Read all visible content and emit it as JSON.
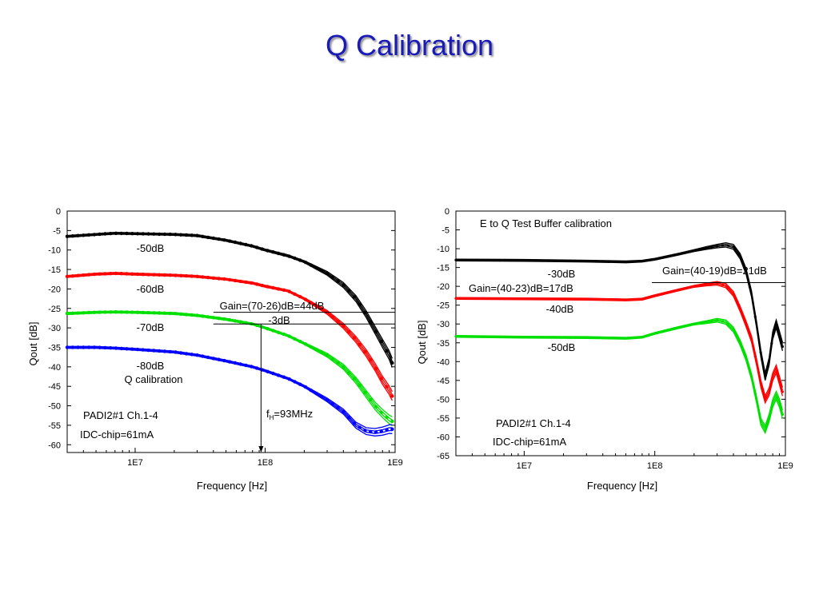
{
  "slide": {
    "title": "Q Calibration"
  },
  "chart_data": [
    {
      "type": "line",
      "xscale": "log",
      "xlim": [
        3000000,
        1000000000
      ],
      "ylim": [
        -62,
        0
      ],
      "xlabel": "Frequency [Hz]",
      "ylabel": "Qout [dB]",
      "xticks": [
        {
          "value": 10000000,
          "label": "1E7"
        },
        {
          "value": 100000000,
          "label": "1E8"
        },
        {
          "value": 1000000000,
          "label": "1E9"
        }
      ],
      "yticks": [
        0,
        -5,
        -10,
        -15,
        -20,
        -25,
        -30,
        -35,
        -40,
        -45,
        -50,
        -55,
        -60
      ],
      "grid": false,
      "series": [
        {
          "name": "-50dB",
          "color": "#000000",
          "x": [
            3000000,
            5000000,
            7000000,
            10000000,
            20000000,
            30000000,
            50000000,
            80000000,
            100000000,
            150000000,
            200000000,
            300000000,
            400000000,
            500000000,
            600000000,
            700000000,
            800000000,
            900000000,
            950000000
          ],
          "y": [
            -6.5,
            -6.0,
            -5.7,
            -5.8,
            -6.0,
            -6.3,
            -7.5,
            -9.0,
            -10.0,
            -11.5,
            -13.0,
            -16.0,
            -19.0,
            -22.5,
            -26.5,
            -30.5,
            -34.0,
            -37.0,
            -39.0
          ]
        },
        {
          "name": "-60dB",
          "color": "#ff0000",
          "x": [
            3000000,
            5000000,
            7000000,
            10000000,
            20000000,
            30000000,
            50000000,
            80000000,
            100000000,
            150000000,
            200000000,
            300000000,
            400000000,
            500000000,
            600000000,
            700000000,
            800000000,
            900000000,
            950000000
          ],
          "y": [
            -16.8,
            -16.2,
            -16.0,
            -16.2,
            -16.5,
            -16.8,
            -17.5,
            -18.5,
            -19.3,
            -20.5,
            -22.5,
            -26.0,
            -29.5,
            -33.0,
            -36.5,
            -40.0,
            -43.5,
            -46.0,
            -47.5
          ]
        },
        {
          "name": "-70dB",
          "color": "#00e000",
          "x": [
            3000000,
            5000000,
            7000000,
            10000000,
            20000000,
            30000000,
            50000000,
            80000000,
            100000000,
            150000000,
            200000000,
            300000000,
            400000000,
            500000000,
            600000000,
            700000000,
            800000000,
            900000000,
            950000000
          ],
          "y": [
            -26.3,
            -26.0,
            -25.9,
            -26.0,
            -26.3,
            -26.8,
            -27.8,
            -29.0,
            -30.0,
            -32.0,
            -34.0,
            -37.0,
            -40.0,
            -43.5,
            -47.0,
            -50.0,
            -52.0,
            -53.5,
            -54.0
          ]
        },
        {
          "name": "-80dB",
          "color": "#0000ff",
          "x": [
            3000000,
            5000000,
            7000000,
            10000000,
            20000000,
            30000000,
            50000000,
            80000000,
            100000000,
            150000000,
            200000000,
            300000000,
            400000000,
            500000000,
            600000000,
            700000000,
            800000000,
            900000000,
            950000000
          ],
          "y": [
            -35.0,
            -35.0,
            -35.2,
            -35.5,
            -36.2,
            -37.0,
            -38.5,
            -40.0,
            -41.0,
            -43.0,
            -45.0,
            -48.5,
            -51.5,
            -55.0,
            -56.5,
            -56.8,
            -56.5,
            -56.0,
            -56.0
          ]
        }
      ],
      "reference_lines": [
        {
          "y": -26,
          "x1": 40000000,
          "x2": 1000000000
        },
        {
          "y": -29,
          "x1": 40000000,
          "x2": 1000000000
        }
      ],
      "marker_line": {
        "x": 93000000,
        "y1": -29,
        "y2": -62
      },
      "annotations": {
        "label_50": "-50dB",
        "label_60": "-60dB",
        "label_70": "-70dB",
        "label_80": "-80dB",
        "q_calibration": "Q calibration",
        "gain": "Gain=(70-26)dB=44dB",
        "minus3db": "-3dB",
        "fh_main": "f",
        "fh_sub": "H",
        "fh_value": "=93MHz",
        "chip": "PADI2#1 Ch.1-4",
        "current": "IDC-chip=61mA"
      }
    },
    {
      "type": "line",
      "xscale": "log",
      "xlim": [
        3000000,
        1000000000
      ],
      "ylim": [
        -65,
        0
      ],
      "xlabel": "Frequency [Hz]",
      "ylabel": "Qout [dB]",
      "xticks": [
        {
          "value": 10000000,
          "label": "1E7"
        },
        {
          "value": 100000000,
          "label": "1E8"
        },
        {
          "value": 1000000000,
          "label": "1E9"
        }
      ],
      "yticks": [
        0,
        -5,
        -10,
        -15,
        -20,
        -25,
        -30,
        -35,
        -40,
        -45,
        -50,
        -55,
        -60,
        -65
      ],
      "grid": false,
      "series": [
        {
          "name": "-30dB",
          "color": "#000000",
          "x": [
            3000000,
            10000000,
            30000000,
            60000000,
            80000000,
            100000000,
            150000000,
            200000000,
            250000000,
            300000000,
            350000000,
            400000000,
            450000000,
            500000000,
            550000000,
            600000000,
            650000000,
            700000000,
            750000000,
            800000000,
            850000000,
            900000000,
            950000000
          ],
          "y": [
            -13.0,
            -13.1,
            -13.3,
            -13.5,
            -13.3,
            -12.8,
            -11.5,
            -10.5,
            -9.8,
            -9.3,
            -9.0,
            -9.5,
            -12.0,
            -16.0,
            -22.0,
            -30.0,
            -38.0,
            -44.0,
            -40.0,
            -33.0,
            -30.0,
            -33.0,
            -36.0
          ]
        },
        {
          "name": "-40dB",
          "color": "#ff0000",
          "x": [
            3000000,
            10000000,
            30000000,
            60000000,
            80000000,
            100000000,
            150000000,
            200000000,
            250000000,
            300000000,
            350000000,
            400000000,
            450000000,
            500000000,
            550000000,
            600000000,
            650000000,
            700000000,
            750000000,
            800000000,
            850000000,
            900000000,
            950000000
          ],
          "y": [
            -23.2,
            -23.3,
            -23.4,
            -23.6,
            -23.4,
            -22.5,
            -21.0,
            -20.0,
            -19.5,
            -19.2,
            -19.8,
            -22.0,
            -26.0,
            -30.0,
            -34.0,
            -40.0,
            -46.0,
            -50.0,
            -48.0,
            -44.0,
            -42.0,
            -45.0,
            -48.0
          ]
        },
        {
          "name": "-50dB",
          "color": "#00e000",
          "x": [
            3000000,
            10000000,
            30000000,
            60000000,
            80000000,
            100000000,
            150000000,
            200000000,
            250000000,
            300000000,
            350000000,
            400000000,
            450000000,
            500000000,
            550000000,
            600000000,
            650000000,
            700000000,
            750000000,
            800000000,
            850000000,
            900000000,
            950000000
          ],
          "y": [
            -33.3,
            -33.5,
            -33.6,
            -33.8,
            -33.5,
            -32.5,
            -31.0,
            -30.0,
            -29.5,
            -29.0,
            -29.5,
            -31.5,
            -35.0,
            -39.0,
            -44.0,
            -50.0,
            -56.0,
            -58.0,
            -55.0,
            -51.0,
            -49.0,
            -51.0,
            -54.0
          ]
        }
      ],
      "reference_lines": [
        {
          "y": -19,
          "x1": 95000000,
          "x2": 1000000000
        }
      ],
      "annotations": {
        "title": "E to Q Test Buffer calibration",
        "label_30": "-30dB",
        "label_40": "-40dB",
        "label_50": "-50dB",
        "gain1": "Gain=(40-19)dB=21dB",
        "gain2": "Gain=(40-23)dB=17dB",
        "chip": "PADI2#1 Ch.1-4",
        "current": "IDC-chip=61mA"
      }
    }
  ]
}
